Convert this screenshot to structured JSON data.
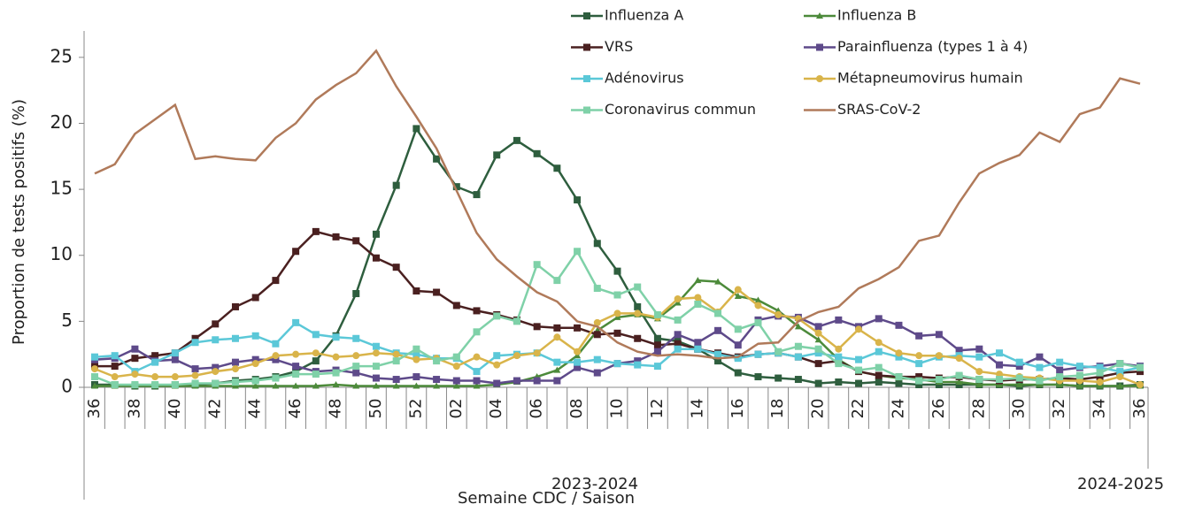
{
  "chart_data": {
    "type": "line",
    "y_label": "Proportion de tests positifs (%)",
    "x_label": "Semaine CDC / Saison",
    "seasons": [
      "2023-2024",
      "2024-2025"
    ],
    "categories": [
      "36",
      null,
      "38",
      null,
      "40",
      null,
      "42",
      null,
      "44",
      null,
      "46",
      null,
      "48",
      null,
      "50",
      null,
      "52",
      null,
      "02",
      null,
      "04",
      null,
      "06",
      null,
      "08",
      null,
      "10",
      null,
      "12",
      null,
      "14",
      null,
      "16",
      null,
      "18",
      null,
      "20",
      null,
      "22",
      null,
      "24",
      null,
      "26",
      null,
      "28",
      null,
      "30",
      null,
      "32",
      null,
      "34",
      null,
      "36"
    ],
    "ylim": [
      0,
      27
    ],
    "yticks": [
      0,
      5,
      10,
      15,
      20,
      25
    ],
    "series": [
      {
        "name": "Influenza A",
        "color": "#2e5e3e",
        "marker": "square",
        "values": [
          0.2,
          0.2,
          0.1,
          0.1,
          0.2,
          0.2,
          0.3,
          0.5,
          0.6,
          0.8,
          1.2,
          2.0,
          3.9,
          7.1,
          11.6,
          15.3,
          19.6,
          17.3,
          15.2,
          14.6,
          17.6,
          18.7,
          17.7,
          16.6,
          14.2,
          10.9,
          8.8,
          6.1,
          3.7,
          3.5,
          2.9,
          2.0,
          1.1,
          0.8,
          0.7,
          0.6,
          0.3,
          0.4,
          0.3,
          0.4,
          0.3,
          0.2,
          0.2,
          0.2,
          0.2,
          0.2,
          0.1,
          0.2,
          0.2,
          0.1,
          0.1,
          0.1,
          0.2
        ]
      },
      {
        "name": "Influenza B",
        "color": "#4c8a3a",
        "marker": "triangle",
        "values": [
          0.1,
          0.1,
          0.1,
          0.1,
          0.1,
          0.1,
          0.1,
          0.1,
          0.1,
          0.1,
          0.1,
          0.1,
          0.2,
          0.1,
          0.1,
          0.1,
          0.1,
          0.1,
          0.1,
          0.1,
          0.2,
          0.4,
          0.8,
          1.3,
          2.4,
          4.3,
          5.3,
          5.5,
          5.2,
          6.4,
          8.1,
          8.0,
          6.9,
          6.6,
          5.8,
          4.6,
          3.6,
          2.1,
          1.2,
          0.9,
          0.7,
          0.6,
          0.4,
          0.4,
          0.2,
          0.2,
          0.2,
          0.2,
          0.2,
          0.1,
          0.1,
          0.1,
          0.1
        ]
      },
      {
        "name": "VRS",
        "color": "#4a2020",
        "marker": "square",
        "values": [
          1.6,
          1.6,
          2.2,
          2.4,
          2.6,
          3.7,
          4.8,
          6.1,
          6.8,
          8.1,
          10.3,
          11.8,
          11.4,
          11.1,
          9.8,
          9.1,
          7.3,
          7.2,
          6.2,
          5.8,
          5.5,
          5.1,
          4.6,
          4.5,
          4.5,
          4.0,
          4.1,
          3.7,
          3.2,
          3.3,
          2.9,
          2.6,
          2.3,
          2.5,
          2.6,
          2.3,
          1.8,
          2.0,
          1.2,
          0.9,
          0.8,
          0.8,
          0.7,
          0.8,
          0.6,
          0.5,
          0.6,
          0.6,
          0.7,
          0.6,
          0.8,
          1.1,
          1.2
        ]
      },
      {
        "name": "Parainfluenza (types 1 à 4)",
        "color": "#5e4a8a",
        "marker": "square",
        "values": [
          2.1,
          2.2,
          2.9,
          2.0,
          2.1,
          1.4,
          1.5,
          1.9,
          2.1,
          2.1,
          1.6,
          1.2,
          1.3,
          1.1,
          0.7,
          0.6,
          0.8,
          0.6,
          0.5,
          0.5,
          0.3,
          0.5,
          0.5,
          0.5,
          1.5,
          1.1,
          1.8,
          2.0,
          2.7,
          4.0,
          3.4,
          4.3,
          3.2,
          5.1,
          5.4,
          5.3,
          4.6,
          5.1,
          4.6,
          5.2,
          4.7,
          3.9,
          4.0,
          2.8,
          2.9,
          1.7,
          1.6,
          2.3,
          1.3,
          1.5,
          1.6,
          1.8,
          1.6
        ]
      },
      {
        "name": "Adénovirus",
        "color": "#5bc8d8",
        "marker": "square",
        "values": [
          2.3,
          2.4,
          1.2,
          1.9,
          2.6,
          3.4,
          3.6,
          3.7,
          3.9,
          3.3,
          4.9,
          4.0,
          3.8,
          3.7,
          3.1,
          2.6,
          2.5,
          2.2,
          2.2,
          1.2,
          2.4,
          2.5,
          2.6,
          1.9,
          1.9,
          2.1,
          1.8,
          1.7,
          1.6,
          2.9,
          2.9,
          2.5,
          2.2,
          2.5,
          2.6,
          2.3,
          2.6,
          2.3,
          2.1,
          2.7,
          2.3,
          1.8,
          2.3,
          2.4,
          2.3,
          2.6,
          1.9,
          1.5,
          1.9,
          1.6,
          1.5,
          1.2,
          1.5
        ]
      },
      {
        "name": "Métapneumovirus humain",
        "color": "#d9b44a",
        "marker": "circle",
        "values": [
          1.4,
          0.8,
          1.0,
          0.8,
          0.8,
          0.9,
          1.2,
          1.4,
          1.8,
          2.4,
          2.5,
          2.6,
          2.3,
          2.4,
          2.6,
          2.5,
          2.1,
          2.2,
          1.6,
          2.3,
          1.7,
          2.4,
          2.6,
          3.8,
          2.7,
          4.9,
          5.6,
          5.6,
          5.3,
          6.7,
          6.8,
          5.7,
          7.4,
          6.2,
          5.5,
          5.2,
          4.1,
          2.9,
          4.4,
          3.4,
          2.6,
          2.4,
          2.4,
          2.2,
          1.2,
          1.0,
          0.8,
          0.7,
          0.5,
          0.5,
          0.4,
          0.8,
          0.2
        ]
      },
      {
        "name": "Coronavirus commun",
        "color": "#7fd1a8",
        "marker": "square",
        "values": [
          0.8,
          0.2,
          0.2,
          0.2,
          0.2,
          0.3,
          0.3,
          0.4,
          0.5,
          0.7,
          1.0,
          1.0,
          1.1,
          1.6,
          1.6,
          2.0,
          2.9,
          2.0,
          2.3,
          4.2,
          5.4,
          5.0,
          9.3,
          8.1,
          10.3,
          7.5,
          7.0,
          7.6,
          5.5,
          5.1,
          6.3,
          5.6,
          4.4,
          4.9,
          2.7,
          3.1,
          2.9,
          1.8,
          1.3,
          1.5,
          0.8,
          0.5,
          0.6,
          0.9,
          0.6,
          0.6,
          0.7,
          0.5,
          0.8,
          0.9,
          1.1,
          1.8,
          1.5
        ]
      },
      {
        "name": "SRAS-CoV-2",
        "color": "#b07a5a",
        "marker": "none",
        "values": [
          16.2,
          16.9,
          19.2,
          20.3,
          21.4,
          17.3,
          17.5,
          17.3,
          17.2,
          18.9,
          20.0,
          21.8,
          22.9,
          23.8,
          25.5,
          22.8,
          20.5,
          18.1,
          14.9,
          11.7,
          9.7,
          8.4,
          7.2,
          6.5,
          5.0,
          4.6,
          3.4,
          2.7,
          2.4,
          2.5,
          2.4,
          2.2,
          2.3,
          3.3,
          3.4,
          5.0,
          5.7,
          6.1,
          7.5,
          8.2,
          9.1,
          11.1,
          11.5,
          14.0,
          16.2,
          17.0,
          17.6,
          19.3,
          18.6,
          20.7,
          21.2,
          23.4,
          23.0
        ]
      }
    ]
  }
}
